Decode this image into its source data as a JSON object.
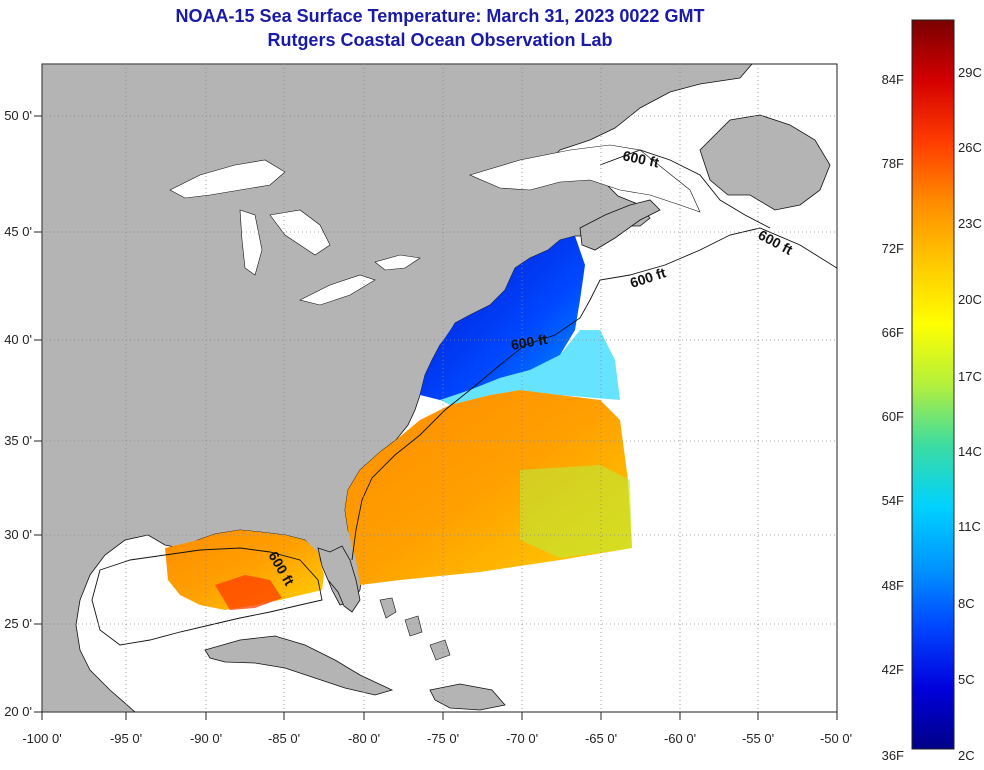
{
  "title": "NOAA-15 Sea Surface Temperature:  March 31, 2023 0022 GMT",
  "subtitle": "Rutgers Coastal Ocean Observation Lab",
  "map": {
    "lon_ticks": [
      "-100 0'",
      "-95 0'",
      "-90 0'",
      "-85 0'",
      "-80 0'",
      "-75 0'",
      "-70 0'",
      "-65 0'",
      "-60 0'",
      "-55 0'",
      "-50 0'"
    ],
    "lat_ticks": [
      "20 0'",
      "25 0'",
      "30 0'",
      "35 0'",
      "40 0'",
      "45 0'",
      "50 0'"
    ],
    "contour_labels": [
      "600 ft",
      "600 ft",
      "600 ft",
      "600 ft",
      "600 ft"
    ],
    "colors": {
      "land": "#b4b4b4",
      "water": "#ffffff",
      "grid": "#888888"
    }
  },
  "colorbar": {
    "fahrenheit": [
      "84F",
      "78F",
      "72F",
      "66F",
      "60F",
      "54F",
      "48F",
      "42F",
      "36F"
    ],
    "celsius": [
      "29C",
      "26C",
      "23C",
      "20C",
      "17C",
      "14C",
      "11C",
      "8C",
      "5C",
      "2C"
    ],
    "gradient": [
      "#7a0000",
      "#d40000",
      "#ff3c00",
      "#ff8c00",
      "#ffc800",
      "#ffff00",
      "#b4f03c",
      "#3cdca0",
      "#00d2ff",
      "#0096ff",
      "#0046ff",
      "#0000dc",
      "#000087"
    ]
  }
}
